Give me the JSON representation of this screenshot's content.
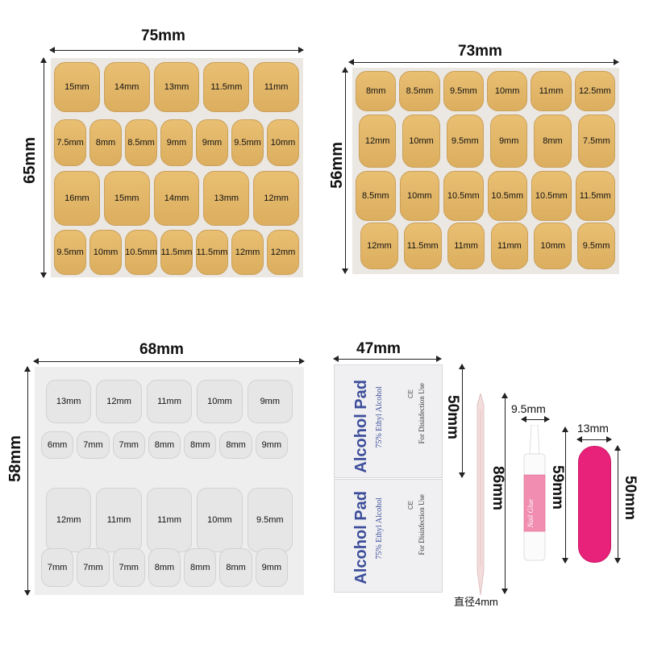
{
  "panel_tan_large": {
    "width_label": "75mm",
    "height_label": "65mm",
    "rows": [
      [
        "15mm",
        "14mm",
        "13mm",
        "11.5mm",
        "11mm"
      ],
      [
        "7.5mm",
        "8mm",
        "8.5mm",
        "9mm",
        "9mm",
        "9.5mm",
        "10mm"
      ],
      [
        "16mm",
        "15mm",
        "14mm",
        "13mm",
        "12mm"
      ],
      [
        "9.5mm",
        "10mm",
        "10.5mm",
        "11.5mm",
        "11.5mm",
        "12mm",
        "12mm"
      ]
    ]
  },
  "panel_tan_small": {
    "width_label": "73mm",
    "height_label": "56mm",
    "rows": [
      [
        "8mm",
        "8.5mm",
        "9.5mm",
        "10mm",
        "11mm",
        "12.5mm"
      ],
      [
        "12mm",
        "10mm",
        "9.5mm",
        "9mm",
        "8mm",
        "7.5mm"
      ],
      [
        "8.5mm",
        "10mm",
        "10.5mm",
        "10.5mm",
        "10.5mm",
        "11.5mm"
      ],
      [
        "12mm",
        "11.5mm",
        "11mm",
        "11mm",
        "10mm",
        "9.5mm"
      ]
    ]
  },
  "panel_clear": {
    "width_label": "68mm",
    "height_label": "58mm",
    "rows": [
      [
        "13mm",
        "12mm",
        "11mm",
        "10mm",
        "9mm"
      ],
      [
        "6mm",
        "7mm",
        "7mm",
        "8mm",
        "8mm",
        "8mm",
        "9mm"
      ],
      [
        "12mm",
        "11mm",
        "11mm",
        "10mm",
        "9.5mm"
      ],
      [
        "7mm",
        "7mm",
        "7mm",
        "8mm",
        "8mm",
        "8mm",
        "9mm"
      ]
    ]
  },
  "alcohol_pads": {
    "width_label": "47mm",
    "height_label": "50mm",
    "items": [
      {
        "title": "Alcohol Pad",
        "subtitle": "75% Ethyl Alcohol",
        "use": "For Disinfection Use",
        "mark": "CE"
      },
      {
        "title": "Alcohol Pad",
        "subtitle": "75% Ethyl Alcohol",
        "use": "For Disinfection Use",
        "mark": "CE"
      }
    ]
  },
  "cuticle_stick": {
    "length_label": "86mm",
    "diameter_label": "直径4mm"
  },
  "nail_glue": {
    "width_label": "9.5mm",
    "height_label": "59mm",
    "label_text": "Nail Glue"
  },
  "nail_file": {
    "width_label": "13mm",
    "height_label": "50mm"
  },
  "colors": {
    "tan_tab": "#e2b566",
    "clear_tab": "#e6e6e6",
    "pad_text": "#3d4e9a",
    "file_pink": "#e8227a",
    "glue_pink": "#f08db0"
  }
}
